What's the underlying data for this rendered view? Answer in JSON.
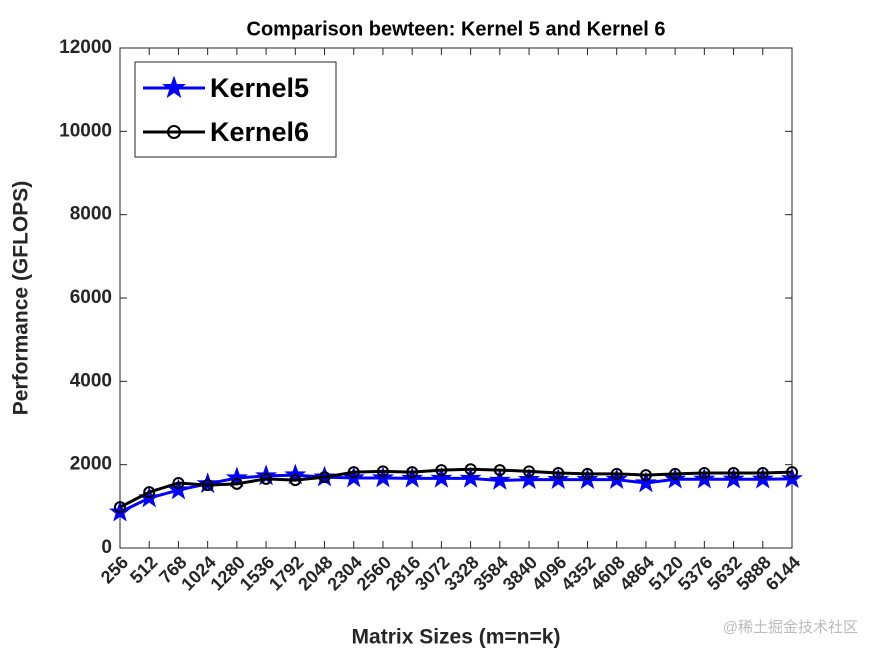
{
  "chart_data": {
    "type": "line",
    "title": "Comparison bewteen: Kernel 5 and Kernel 6",
    "xlabel": "Matrix Sizes (m=n=k)",
    "ylabel": "Performance (GFLOPS)",
    "x": [
      256,
      512,
      768,
      1024,
      1280,
      1536,
      1792,
      2048,
      2304,
      2560,
      2816,
      3072,
      3328,
      3584,
      3840,
      4096,
      4352,
      4608,
      4864,
      5120,
      5376,
      5632,
      5888,
      6144
    ],
    "xlim": [
      256,
      6144
    ],
    "xticks": [
      256,
      512,
      768,
      1024,
      1280,
      1536,
      1792,
      2048,
      2304,
      2560,
      2816,
      3072,
      3328,
      3584,
      3840,
      4096,
      4352,
      4608,
      4864,
      5120,
      5376,
      5632,
      5888,
      6144
    ],
    "ylim": [
      0,
      12000
    ],
    "yticks": [
      0,
      2000,
      4000,
      6000,
      8000,
      10000,
      12000
    ],
    "legend": "upper left",
    "series": [
      {
        "name": "Kernel5",
        "color": "#0000ff",
        "marker": "star",
        "values": [
          860,
          1200,
          1390,
          1540,
          1680,
          1730,
          1750,
          1700,
          1680,
          1680,
          1670,
          1670,
          1670,
          1620,
          1640,
          1640,
          1640,
          1640,
          1560,
          1650,
          1650,
          1650,
          1650,
          1660
        ]
      },
      {
        "name": "Kernel6",
        "color": "#000000",
        "marker": "circle",
        "values": [
          980,
          1340,
          1560,
          1510,
          1540,
          1660,
          1630,
          1700,
          1820,
          1840,
          1820,
          1870,
          1890,
          1870,
          1840,
          1800,
          1780,
          1780,
          1750,
          1780,
          1800,
          1800,
          1800,
          1820
        ]
      }
    ],
    "watermark": "@稀土掘金技术社区"
  }
}
